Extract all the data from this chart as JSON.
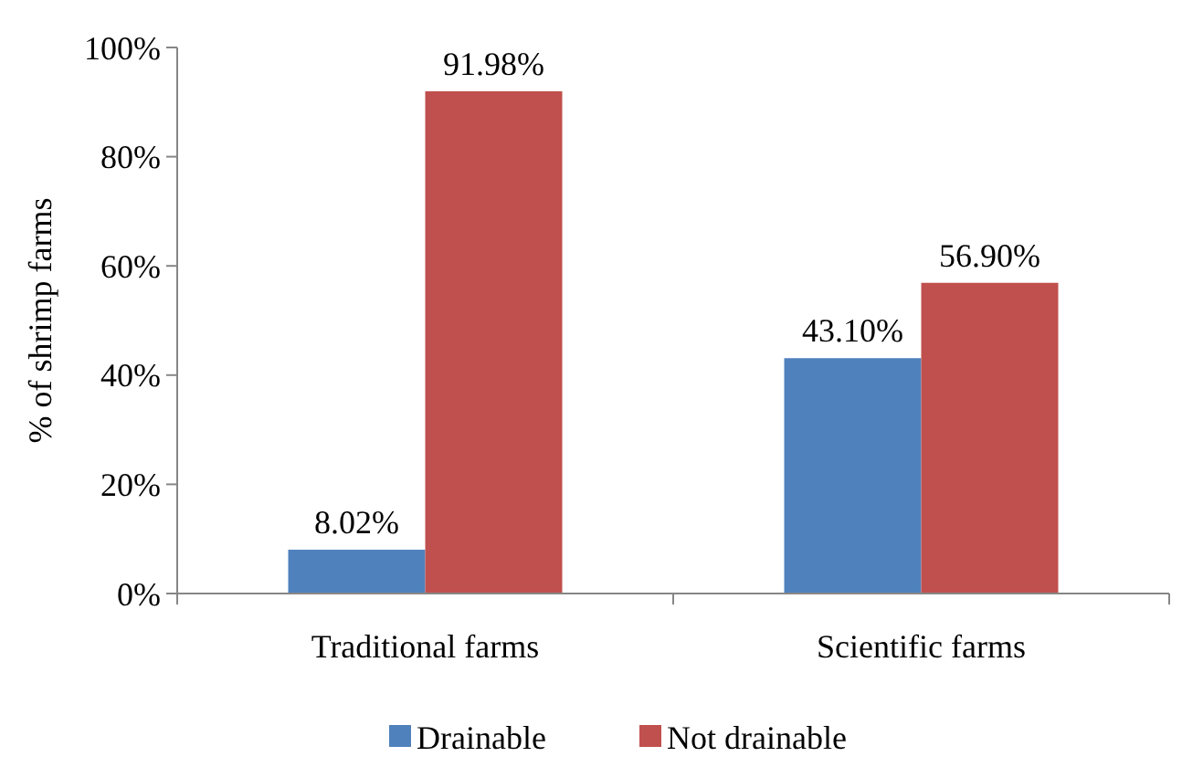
{
  "chart_data": {
    "type": "bar",
    "ylabel": "% of shrimp farms",
    "categories": [
      "Traditional farms",
      "Scientific farms"
    ],
    "series": [
      {
        "name": "Drainable",
        "color": "#4f81bd",
        "values": [
          8.02,
          43.1
        ],
        "value_labels": [
          "8.02%",
          "43.10%"
        ]
      },
      {
        "name": "Not drainable",
        "color": "#c0504d",
        "values": [
          91.98,
          56.9
        ],
        "value_labels": [
          "91.98%",
          "56.90%"
        ]
      }
    ],
    "ylim": [
      0,
      100
    ],
    "yticks": [
      {
        "value": 0,
        "label": "0%"
      },
      {
        "value": 20,
        "label": "20%"
      },
      {
        "value": 40,
        "label": "40%"
      },
      {
        "value": 60,
        "label": "60%"
      },
      {
        "value": 80,
        "label": "80%"
      },
      {
        "value": 100,
        "label": "100%"
      }
    ],
    "grid": false,
    "legend": "bottom"
  }
}
